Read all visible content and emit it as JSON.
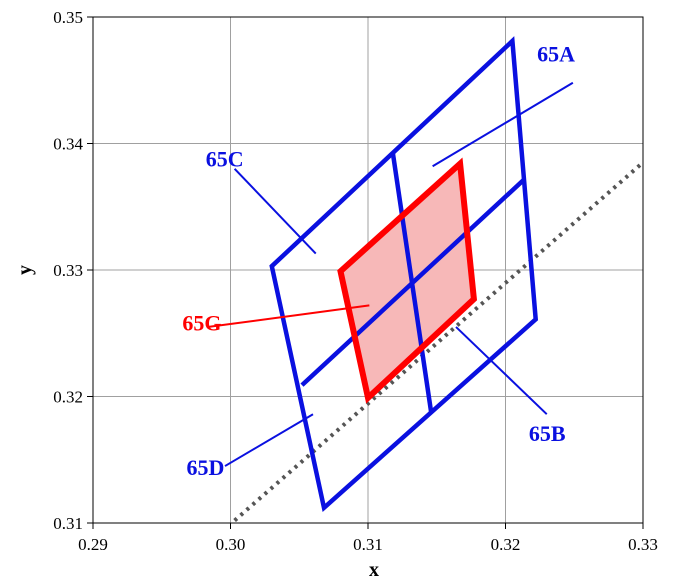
{
  "chart_data": {
    "type": "scatter",
    "title": "",
    "xlabel": "x",
    "ylabel": "y",
    "xlim": [
      0.29,
      0.33
    ],
    "ylim": [
      0.31,
      0.35
    ],
    "x_ticks": [
      "0.29",
      "0.30",
      "0.31",
      "0.32",
      "0.33"
    ],
    "y_ticks": [
      "0.31",
      "0.32",
      "0.33",
      "0.34",
      "0.35"
    ],
    "x_tick_values": [
      0.29,
      0.3,
      0.31,
      0.32,
      0.33
    ],
    "y_tick_values": [
      0.31,
      0.32,
      0.33,
      0.34,
      0.35
    ],
    "grid": true,
    "colors": {
      "blue": "#0a10e0",
      "red": "#ff0000",
      "red_fill": "#f7b8b8",
      "grid": "#a0a0a0",
      "dotted": "#555555"
    },
    "blue_outline": [
      [
        0.303,
        0.3303
      ],
      [
        0.3205,
        0.3481
      ],
      [
        0.3222,
        0.3261
      ],
      [
        0.3068,
        0.3112
      ]
    ],
    "blue_midline_long": [
      [
        0.3052,
        0.3209
      ],
      [
        0.3213,
        0.3371
      ]
    ],
    "blue_midline_short": [
      [
        0.3118,
        0.3393
      ],
      [
        0.3146,
        0.3187
      ]
    ],
    "red_quad": [
      [
        0.308,
        0.3299
      ],
      [
        0.3167,
        0.3384
      ],
      [
        0.3177,
        0.3277
      ],
      [
        0.31,
        0.3199
      ]
    ],
    "red_midline_long": [
      [
        0.309,
        0.3249
      ],
      [
        0.3172,
        0.3331
      ]
    ],
    "red_midline_short": [
      [
        0.3123,
        0.3342
      ],
      [
        0.3139,
        0.3238
      ]
    ],
    "dotted_line": [
      [
        0.3003,
        0.3102
      ],
      [
        0.33,
        0.3385
      ]
    ],
    "labels": [
      {
        "id": "65A",
        "text": "65A",
        "color": "blue",
        "at": [
          0.3223,
          0.3465
        ],
        "leader": [
          [
            0.3249,
            0.3448
          ],
          [
            0.3147,
            0.3382
          ]
        ]
      },
      {
        "id": "65C",
        "text": "65C",
        "color": "blue",
        "at": [
          0.2982,
          0.3382
        ],
        "leader": [
          [
            0.3003,
            0.338
          ],
          [
            0.3062,
            0.3313
          ]
        ]
      },
      {
        "id": "65G",
        "text": "65G",
        "color": "red",
        "at": [
          0.2965,
          0.3252
        ],
        "leader": [
          [
            0.2984,
            0.3255
          ],
          [
            0.3101,
            0.3272
          ]
        ]
      },
      {
        "id": "65B",
        "text": "65B",
        "color": "blue",
        "at": [
          0.3217,
          0.3165
        ],
        "leader": [
          [
            0.323,
            0.3186
          ],
          [
            0.3164,
            0.3255
          ]
        ]
      },
      {
        "id": "65D",
        "text": "65D",
        "color": "blue",
        "at": [
          0.2968,
          0.3138
        ],
        "leader": [
          [
            0.2996,
            0.3145
          ],
          [
            0.306,
            0.3186
          ]
        ]
      }
    ]
  }
}
